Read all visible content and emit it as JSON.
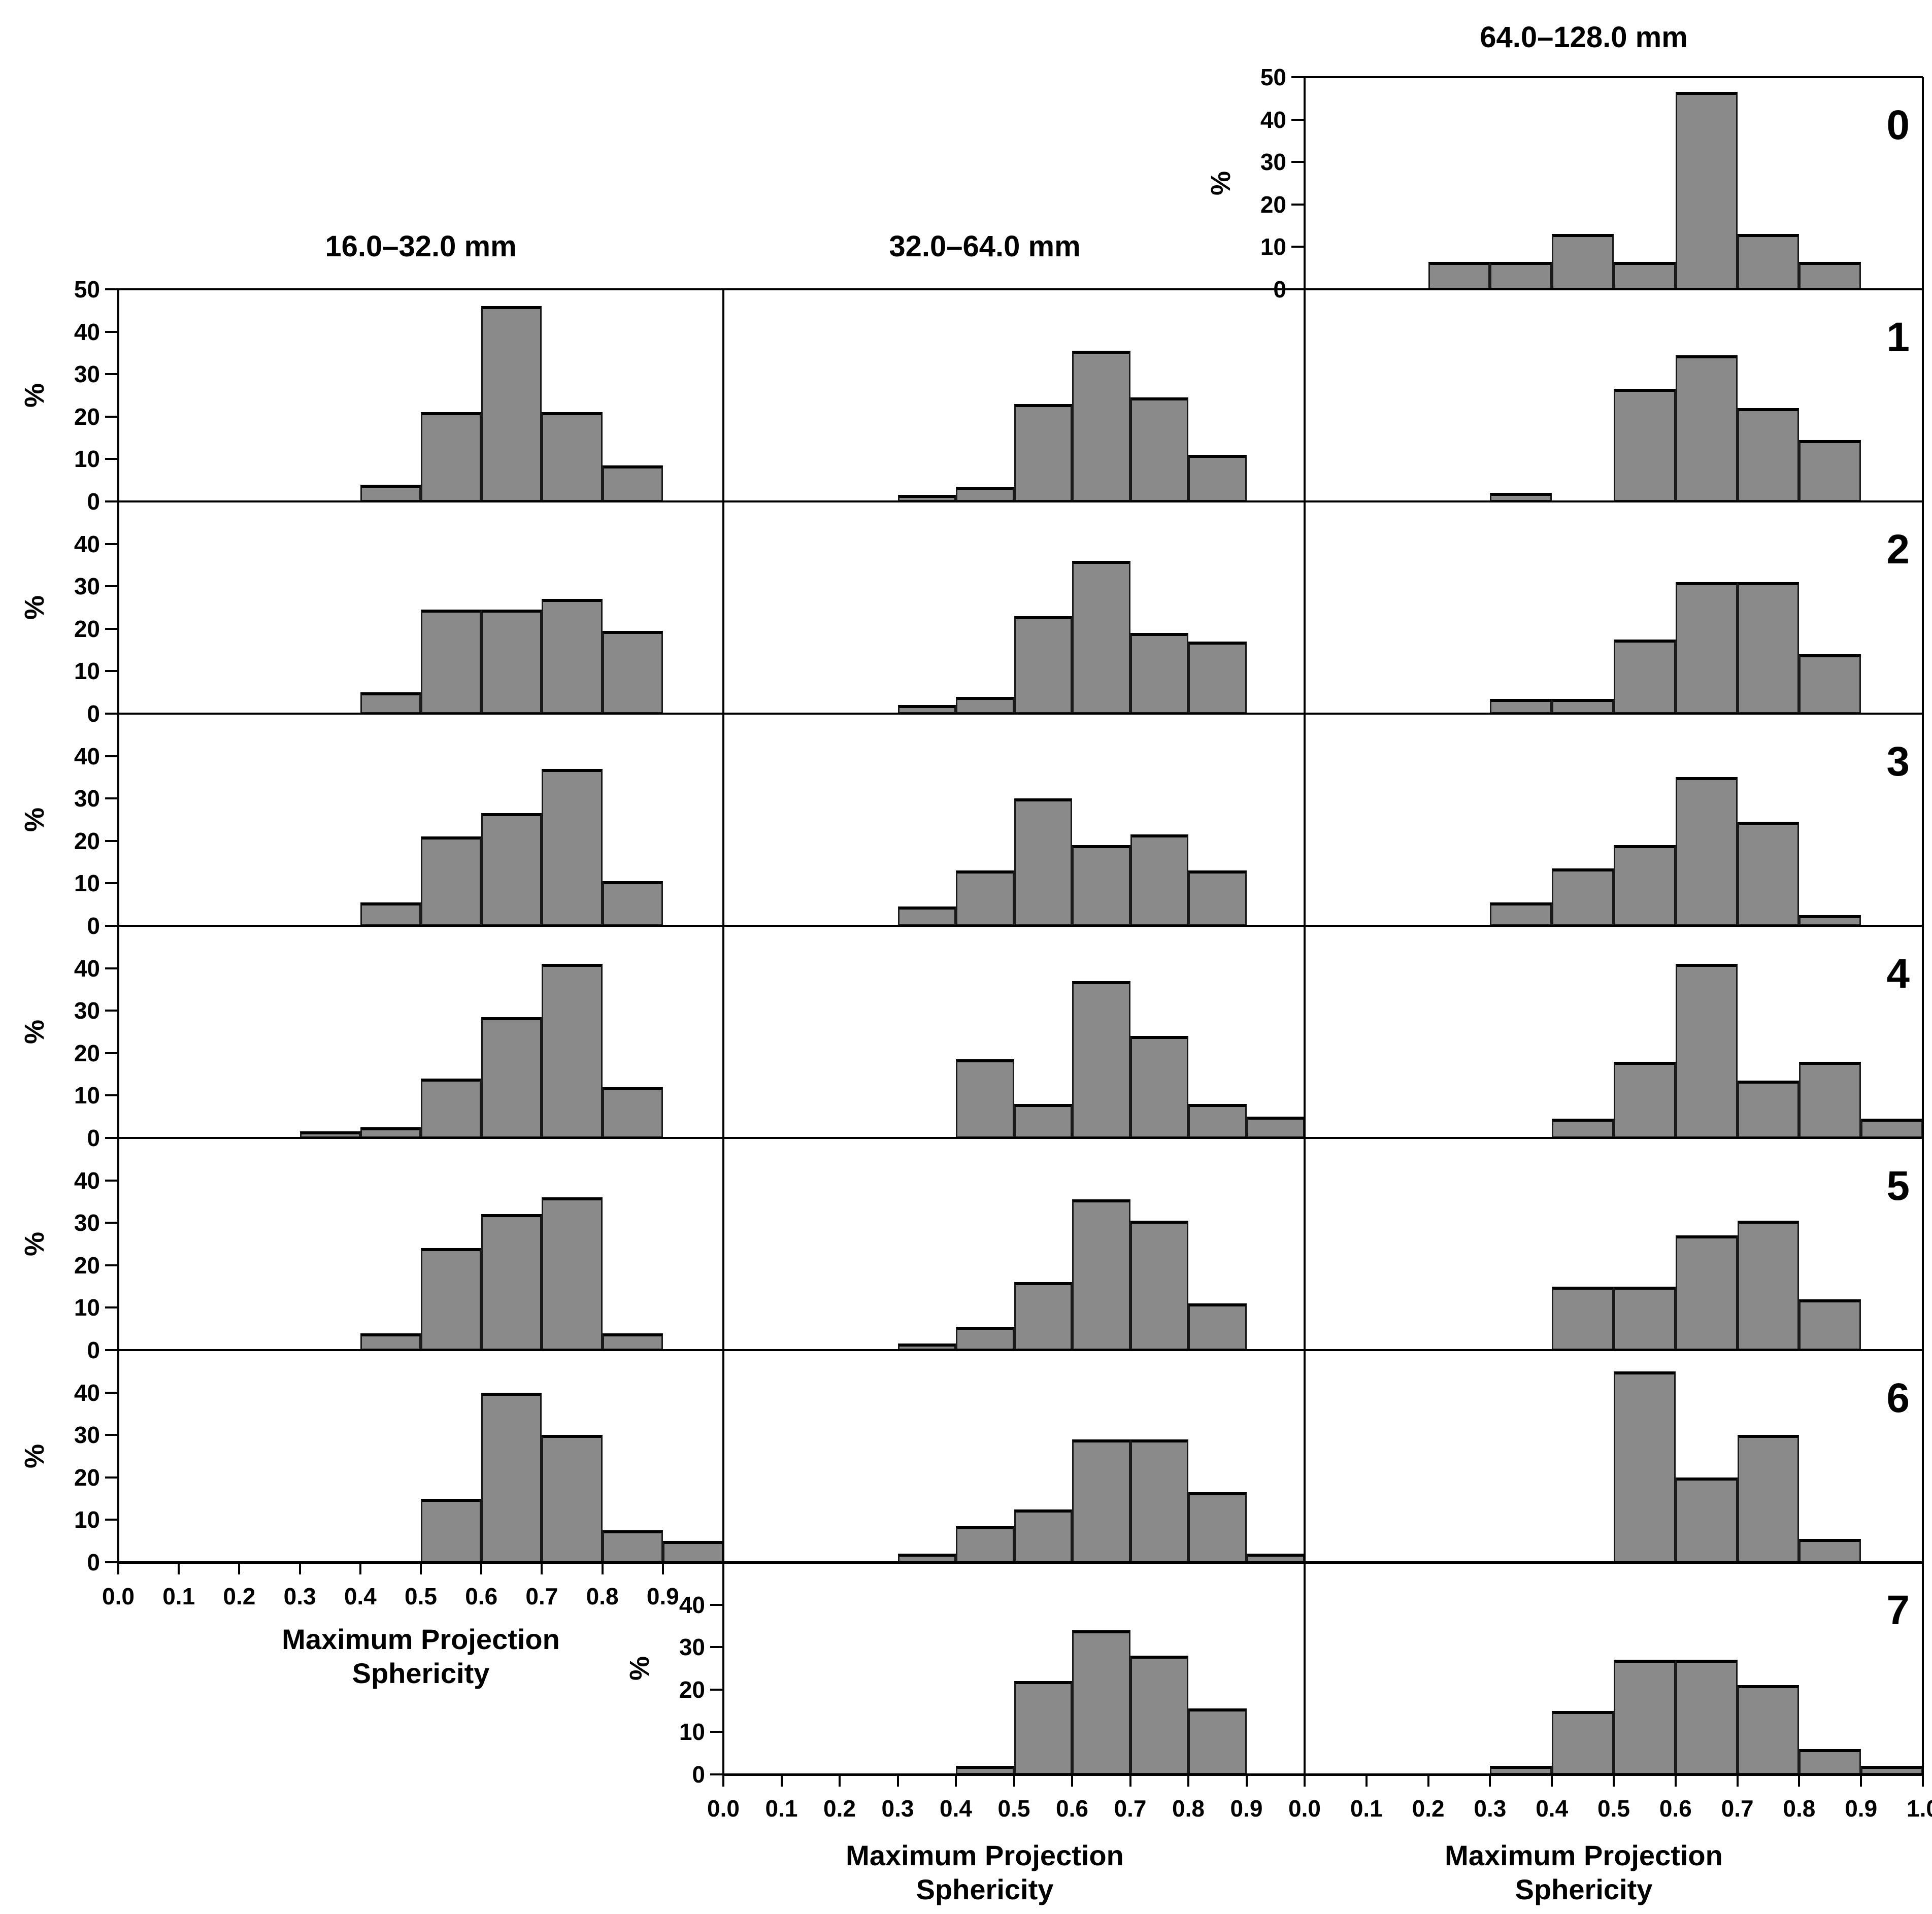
{
  "figure": {
    "background": "#ffffff",
    "bar_fill": "#8a8a8a",
    "bar_edge": "#1a1a1a",
    "line_color": "#000000"
  },
  "chart_data": {
    "type": "bar",
    "subtype": "histogram-grid",
    "title": "",
    "xlabel_lines": [
      "Maximum Projection",
      "Sphericity"
    ],
    "ylabel": "%",
    "ylim": [
      0,
      50
    ],
    "grid": false,
    "bin_start": 0.0,
    "bin_step": 0.1,
    "bin_count": 10,
    "columns": [
      {
        "id": "size-16-32",
        "label": "16.0–32.0 mm"
      },
      {
        "id": "size-32-64",
        "label": "32.0–64.0 mm"
      },
      {
        "id": "size-64-128",
        "label": "64.0–128.0 mm"
      }
    ],
    "row_labels": [
      "0",
      "1",
      "2",
      "3",
      "4",
      "5",
      "6",
      "7"
    ],
    "panels": [
      {
        "row": 0,
        "col": 2,
        "values": [
          0,
          0,
          6.5,
          6.5,
          13,
          6.5,
          46.5,
          13,
          6.5,
          0
        ]
      },
      {
        "row": 1,
        "col": 0,
        "values": [
          0,
          0,
          0,
          0,
          4,
          21,
          46,
          21,
          8.5,
          0
        ]
      },
      {
        "row": 1,
        "col": 1,
        "values": [
          0,
          0,
          0,
          1.5,
          3.5,
          23,
          35.5,
          24.5,
          11,
          0
        ]
      },
      {
        "row": 1,
        "col": 2,
        "values": [
          0,
          0,
          0,
          2,
          0,
          26.5,
          34.5,
          22,
          14.5,
          0
        ]
      },
      {
        "row": 2,
        "col": 0,
        "values": [
          0,
          0,
          0,
          0,
          5,
          24.5,
          24.5,
          27,
          19.5,
          0
        ]
      },
      {
        "row": 2,
        "col": 1,
        "values": [
          0,
          0,
          0,
          2,
          4,
          23,
          36,
          19,
          17,
          0
        ]
      },
      {
        "row": 2,
        "col": 2,
        "values": [
          0,
          0,
          0,
          3.5,
          3.5,
          17.5,
          31,
          31,
          14,
          0
        ]
      },
      {
        "row": 3,
        "col": 0,
        "values": [
          0,
          0,
          0,
          0,
          5.5,
          21,
          26.5,
          37,
          10.5,
          0
        ]
      },
      {
        "row": 3,
        "col": 1,
        "values": [
          0,
          0,
          0,
          4.5,
          13,
          30,
          19,
          21.5,
          13,
          0
        ]
      },
      {
        "row": 3,
        "col": 2,
        "values": [
          0,
          0,
          0,
          5.5,
          13.5,
          19,
          35,
          24.5,
          2.5,
          0
        ]
      },
      {
        "row": 4,
        "col": 0,
        "values": [
          0,
          0,
          0,
          1.5,
          2.5,
          14,
          28.5,
          41,
          12,
          0
        ]
      },
      {
        "row": 4,
        "col": 1,
        "values": [
          0,
          0,
          0,
          0,
          18.5,
          8,
          37,
          24,
          8,
          5
        ]
      },
      {
        "row": 4,
        "col": 2,
        "values": [
          0,
          0,
          0,
          0,
          4.5,
          18,
          41,
          13.5,
          18,
          4.5
        ]
      },
      {
        "row": 5,
        "col": 0,
        "values": [
          0,
          0,
          0,
          0,
          4,
          24,
          32,
          36,
          4,
          0
        ]
      },
      {
        "row": 5,
        "col": 1,
        "values": [
          0,
          0,
          0,
          1.5,
          5.5,
          16,
          35.5,
          30.5,
          11,
          0
        ]
      },
      {
        "row": 5,
        "col": 2,
        "values": [
          0,
          0,
          0,
          0,
          15,
          15,
          27,
          30.5,
          12,
          0
        ]
      },
      {
        "row": 6,
        "col": 0,
        "values": [
          0,
          0,
          0,
          0,
          0,
          15,
          40,
          30,
          7.5,
          5
        ]
      },
      {
        "row": 6,
        "col": 1,
        "values": [
          0,
          0,
          0,
          2,
          8.5,
          12.5,
          29,
          29,
          16.5,
          2
        ]
      },
      {
        "row": 6,
        "col": 2,
        "values": [
          0,
          0,
          0,
          0,
          0,
          45,
          20,
          30,
          5.5,
          0
        ]
      },
      {
        "row": 7,
        "col": 1,
        "values": [
          0,
          0,
          0,
          0,
          2,
          22,
          34,
          28,
          15.5,
          0
        ]
      },
      {
        "row": 7,
        "col": 2,
        "values": [
          0,
          0,
          0,
          2,
          15,
          27,
          27,
          21,
          6,
          2
        ]
      }
    ],
    "y_axes": [
      {
        "row": 0,
        "col": 2,
        "labels": [
          "50",
          "40",
          "30",
          "20",
          "10",
          "0"
        ]
      },
      {
        "row": 1,
        "col": 0,
        "labels": [
          "50",
          "40",
          "30",
          "20",
          "10",
          "0"
        ]
      },
      {
        "row": 2,
        "col": 0,
        "labels": [
          "40",
          "30",
          "20",
          "10",
          "0"
        ]
      },
      {
        "row": 3,
        "col": 0,
        "labels": [
          "40",
          "30",
          "20",
          "10",
          "0"
        ]
      },
      {
        "row": 4,
        "col": 0,
        "labels": [
          "40",
          "30",
          "20",
          "10",
          "0"
        ]
      },
      {
        "row": 5,
        "col": 0,
        "labels": [
          "40",
          "30",
          "20",
          "10",
          "0"
        ]
      },
      {
        "row": 6,
        "col": 0,
        "labels": [
          "40",
          "30",
          "20",
          "10",
          "0"
        ]
      },
      {
        "row": 7,
        "col": 1,
        "labels": [
          "40",
          "30",
          "20",
          "10",
          "0"
        ]
      }
    ],
    "x_axes": [
      {
        "col": 0,
        "at_row": 6,
        "labels": [
          "0.0",
          "0.1",
          "0.2",
          "0.3",
          "0.4",
          "0.5",
          "0.6",
          "0.7",
          "0.8",
          "0.9"
        ]
      },
      {
        "col": 1,
        "at_row": 7,
        "labels": [
          "0.0",
          "0.1",
          "0.2",
          "0.3",
          "0.4",
          "0.5",
          "0.6",
          "0.7",
          "0.8",
          "0.9"
        ]
      },
      {
        "col": 2,
        "at_row": 7,
        "labels": [
          "0.0",
          "0.1",
          "0.2",
          "0.3",
          "0.4",
          "0.5",
          "0.6",
          "0.7",
          "0.8",
          "0.9",
          "1.0"
        ]
      }
    ]
  }
}
